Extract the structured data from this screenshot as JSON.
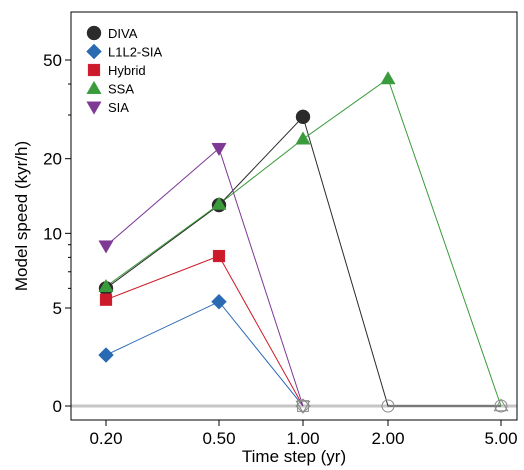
{
  "chart_data": {
    "type": "line",
    "xlabel": "Time step (yr)",
    "ylabel": "Model speed (kyr/h)",
    "x_categories": [
      "0.20",
      "0.50",
      "1.00",
      "2.00",
      "5.00"
    ],
    "y_scale": "log1p",
    "y_ticks": [
      0,
      5,
      10,
      20,
      50
    ],
    "ylim": [
      0,
      80
    ],
    "legend_position": "top-left",
    "zero_line": true,
    "series": [
      {
        "name": "DIVA",
        "marker": "circle",
        "color": "#2b2b2b",
        "values": [
          6.0,
          13.0,
          29.5,
          0,
          0
        ]
      },
      {
        "name": "L1L2-SIA",
        "marker": "diamond",
        "color": "#2a6ab3",
        "values": [
          2.6,
          5.3,
          0,
          null,
          null
        ]
      },
      {
        "name": "Hybrid",
        "marker": "square",
        "color": "#cc1a2a",
        "values": [
          5.4,
          8.1,
          0,
          null,
          null
        ]
      },
      {
        "name": "SSA",
        "marker": "triangle-up",
        "color": "#3a9b3c",
        "values": [
          6.1,
          13.1,
          24.0,
          42.0,
          0
        ]
      },
      {
        "name": "SIA",
        "marker": "triangle-down",
        "color": "#7e3994",
        "values": [
          8.9,
          22.0,
          0,
          null,
          null
        ]
      }
    ]
  }
}
